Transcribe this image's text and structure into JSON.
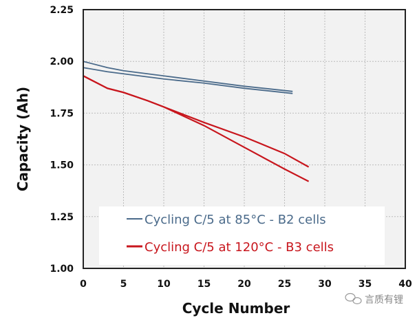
{
  "chart_data": {
    "type": "line",
    "title": "",
    "xlabel": "Cycle Number",
    "ylabel": "Capacity (Ah)",
    "xlim": [
      0,
      40
    ],
    "ylim": [
      1.0,
      2.25
    ],
    "xticks": [
      "0",
      "5",
      "10",
      "15",
      "20",
      "25",
      "30",
      "35",
      "40"
    ],
    "yticks": [
      "1.00",
      "1.25",
      "1.50",
      "1.75",
      "2.00",
      "2.25"
    ],
    "grid": true,
    "legend_position": "bottom-center",
    "series": [
      {
        "name": "Cycling C/5 at 85°C - B2 cells",
        "color": "#4a6a8a",
        "x": [
          0,
          3,
          5,
          10,
          15,
          20,
          26
        ],
        "y": [
          2.0,
          1.97,
          1.955,
          1.93,
          1.905,
          1.88,
          1.855
        ]
      },
      {
        "name": "",
        "color": "#4a6a8a",
        "x": [
          0,
          3,
          5,
          10,
          15,
          20,
          26
        ],
        "y": [
          1.97,
          1.95,
          1.94,
          1.915,
          1.895,
          1.87,
          1.845
        ]
      },
      {
        "name": "Cycling C/5 at 120°C - B3 cells",
        "color": "#c8161d",
        "x": [
          0,
          3,
          5,
          8,
          10,
          15,
          20,
          25,
          28
        ],
        "y": [
          1.93,
          1.87,
          1.85,
          1.81,
          1.78,
          1.705,
          1.635,
          1.555,
          1.49
        ]
      },
      {
        "name": "",
        "color": "#c8161d",
        "x": [
          0,
          3,
          5,
          8,
          10,
          15,
          20,
          25,
          28
        ],
        "y": [
          1.93,
          1.87,
          1.85,
          1.81,
          1.78,
          1.69,
          1.585,
          1.48,
          1.42
        ]
      }
    ]
  },
  "watermark": "言质有锂"
}
